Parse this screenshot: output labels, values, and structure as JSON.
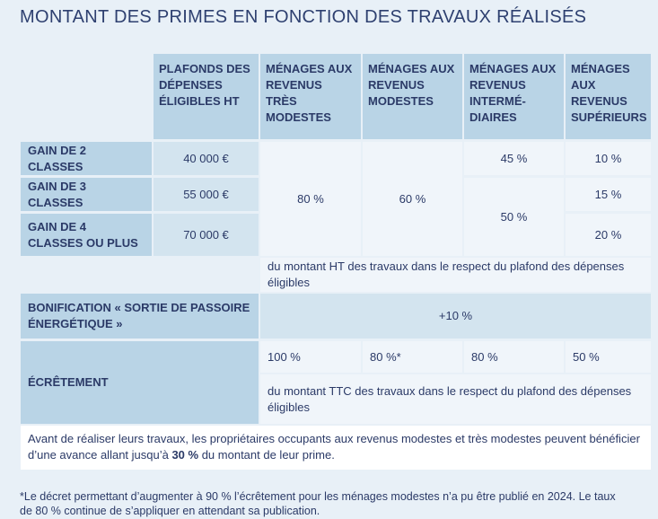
{
  "title": "MONTANT DES PRIMES EN FONCTION DES TRAVAUX RÉALISÉS",
  "headers": [
    "PLAFONDS DES DÉPENSES ÉLIGIBLES HT",
    "MÉNAGES AUX REVENUS TRÈS MODESTES",
    "MÉNAGES AUX REVENUS MODESTES",
    "MÉNAGES AUX REVENUS INTERMÉ-DIAIRES",
    "MÉNAGES AUX REVENUS SUPÉRIEURS"
  ],
  "rows": [
    {
      "label": "GAIN DE 2 CLASSES",
      "plafond": "40 000 €",
      "superieurs": "10 %"
    },
    {
      "label": "GAIN DE 3 CLASSES",
      "plafond": "55 000 €",
      "superieurs": "15 %"
    },
    {
      "label": "GAIN DE 4 CLASSES OU PLUS",
      "plafond": "70 000 €",
      "superieurs": "20 %"
    }
  ],
  "tres_modestes": "80 %",
  "modestes": "60 %",
  "intermediaires_2": "45 %",
  "intermediaires_34": "50 %",
  "ht_note": "du montant HT des travaux dans le respect du plafond des dépenses éligibles",
  "bonification": {
    "label": "BONIFICATION « SORTIE DE PASSOIRE ÉNERGÉTIQUE »",
    "value": "+10 %"
  },
  "ecretement": {
    "label": "ÉCRÊTEMENT",
    "values": [
      "100 %",
      "80 %*",
      "80 %",
      "50 %"
    ],
    "note": "du montant TTC des travaux dans le respect du plafond des dépenses éligibles"
  },
  "avance": {
    "before": "Avant de réaliser leurs travaux, les propriétaires occupants aux revenus modestes et très modestes peuvent bénéficier d’une avance allant jusqu’à ",
    "bold": "30 %",
    "after": " du montant de leur prime."
  },
  "footnote": "*Le décret permettant d’augmenter à 90 % l’écrêtement pour les ménages modestes n’a pu être publié en 2024. Le taux de 80 % continue de s’appliquer en attendant sa publication."
}
